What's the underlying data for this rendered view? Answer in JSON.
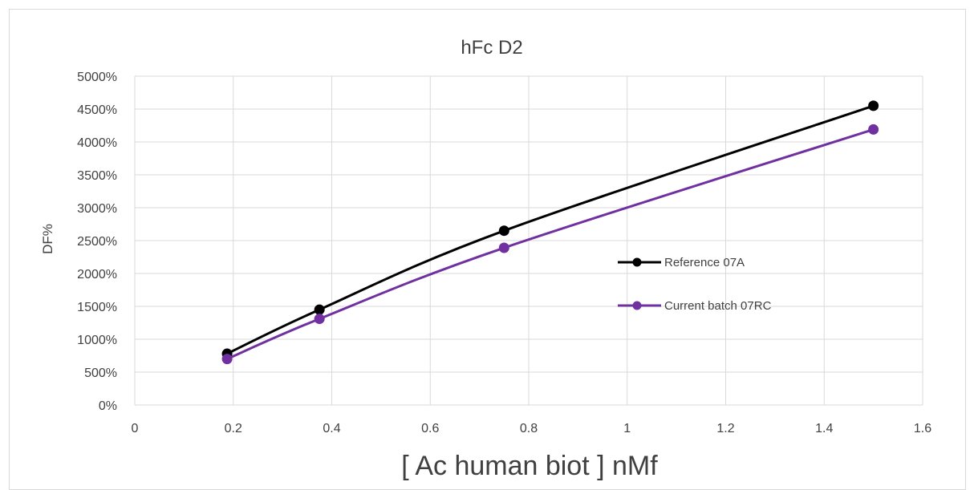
{
  "chart_data": {
    "type": "line",
    "title": "hFc D2",
    "xlabel": "[ Ac human biot ] nMf",
    "ylabel": "DF%",
    "xlim": [
      0,
      1.6
    ],
    "ylim": [
      0,
      5000
    ],
    "x_ticks": [
      "0",
      "0.2",
      "0.4",
      "0.6",
      "0.8",
      "1",
      "1.2",
      "1.4",
      "1.6"
    ],
    "y_ticks": [
      "0%",
      "500%",
      "1000%",
      "1500%",
      "2000%",
      "2500%",
      "3000%",
      "3500%",
      "4000%",
      "4500%",
      "5000%"
    ],
    "grid": true,
    "legend_position": "right-inside",
    "series": [
      {
        "name": "Reference 07A",
        "color": "#000000",
        "points": [
          [
            0.1875,
            780
          ],
          [
            0.375,
            1450
          ],
          [
            0.75,
            2650
          ],
          [
            1.5,
            4550
          ]
        ]
      },
      {
        "name": "Current batch 07RC",
        "color": "#7030a0",
        "points": [
          [
            0.1875,
            700
          ],
          [
            0.375,
            1310
          ],
          [
            0.75,
            2390
          ],
          [
            1.5,
            4190
          ]
        ]
      }
    ]
  }
}
